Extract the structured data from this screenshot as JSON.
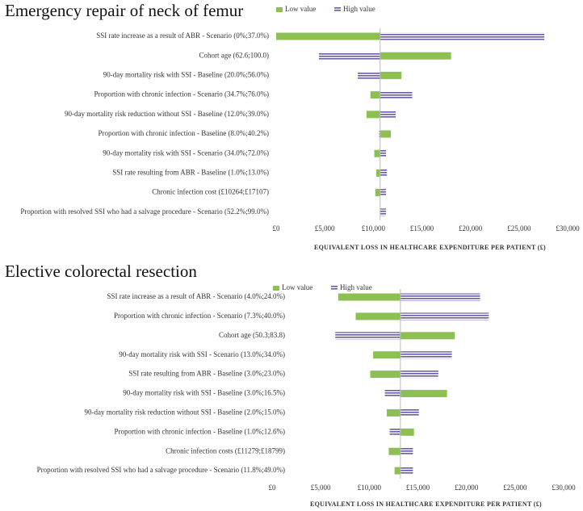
{
  "chart_data": [
    {
      "type": "tornado",
      "title": "Emergency repair of neck of femur",
      "categories": [
        "SSI rate increase as a result of ABR - Scenario (0%;37.0%)",
        "Cohort age (62.6;100.0)",
        "90-day mortality risk with SSI - Baseline (20.0%;56.0%)",
        "Proportion with chronic infection - Scenario (34.7%;76.0%)",
        "90-day mortality risk  reduction without SSI - Baseline (12.0%;39.0%)",
        "Proportion with chronic infection - Baseline (8.0%;40.2%)",
        "90-day mortality risk with SSI - Scenario (34.0%;72.0%)",
        "SSI rate resulting from ABR - Baseline (1.0%;13.0%)",
        "Chronic infection cost (£10264;£17107)",
        "Proportion with resolved SSI who had a salvage procedure - Scenario (52.2%;99.0%)"
      ],
      "base": 10700,
      "series": [
        {
          "name": "Low value",
          "color": "#8dbf52",
          "values": [
            0,
            18000,
            12900,
            9700,
            9300,
            11800,
            10100,
            10300,
            10200,
            10700
          ]
        },
        {
          "name": "High value",
          "color": "#6a5aa8",
          "values": [
            27600,
            4400,
            8400,
            14000,
            12300,
            10600,
            11300,
            11400,
            11300,
            11300
          ]
        }
      ],
      "xlim": [
        0,
        30000
      ],
      "xticks": [
        {
          "value": 0,
          "label": "£0"
        },
        {
          "value": 5000,
          "label": "£5,000"
        },
        {
          "value": 10000,
          "label": "£10,000"
        },
        {
          "value": 15000,
          "label": "£15,000"
        },
        {
          "value": 20000,
          "label": "£20,000"
        },
        {
          "value": 25000,
          "label": "£25,000"
        },
        {
          "value": 30000,
          "label": "£30,000"
        }
      ],
      "x_label": "EQUIVALENT LOSS IN HEALTHCARE EXPENDITURE PER PATIENT (£)"
    },
    {
      "type": "tornado",
      "title": "Elective colorectal resection",
      "categories": [
        "SSI rate increase as a result of ABR - Scenario (4.0%;24.0%)",
        "Proportion with chronic infection - Scenario (7.3%;40.0%)",
        "Cohort age (50.3;83.8)",
        "90-day mortality risk with SSI  - Scenario (13.0%;34.0%)",
        "SSI rate resulting from ABR  - Baseline (3.0%;23.0%)",
        "90-day mortality risk with SSI - Baseline (3.0%;16.5%)",
        "90-day mortality risk reduction without SSI - Baseline (2.0%;15.0%)",
        "Proportion with chronic infection - Baseline (1.0%;12.6%)",
        "Chronic infection costs (£11279;£18799)",
        "Proportion with resolved SSI who had a salvage procedure - Scenario (11.8%;49.0%)"
      ],
      "base": 13200,
      "series": [
        {
          "name": "Low value",
          "color": "#8dbf52",
          "values": [
            6800,
            8600,
            18800,
            10400,
            10100,
            18000,
            11800,
            14600,
            12000,
            12600
          ]
        },
        {
          "name": "High value",
          "color": "#6a5aa8",
          "values": [
            21400,
            22300,
            6500,
            18500,
            17100,
            11600,
            15100,
            12100,
            14500,
            14500
          ]
        }
      ],
      "xlim": [
        0,
        30000
      ],
      "xticks": [
        {
          "value": 0,
          "label": "£0"
        },
        {
          "value": 5000,
          "label": "£5,000"
        },
        {
          "value": 10000,
          "label": "£10,000"
        },
        {
          "value": 15000,
          "label": "£15,000"
        },
        {
          "value": 20000,
          "label": "£20,000"
        },
        {
          "value": 25000,
          "label": "£25,000"
        },
        {
          "value": 30000,
          "label": "£30,000"
        }
      ],
      "x_label": "EQUIVALENT LOSS IN HEALTHCARE EXPENDITURE PER PATIENT (£)"
    }
  ]
}
